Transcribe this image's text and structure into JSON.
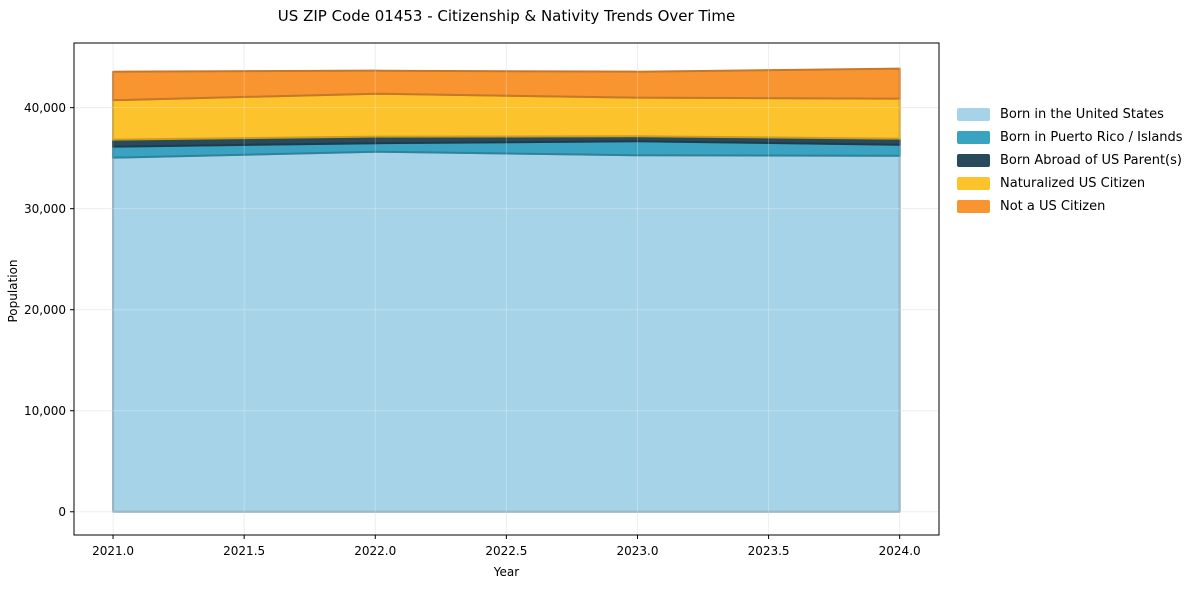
{
  "chart_data": {
    "type": "area",
    "stacked": true,
    "title": "US ZIP Code 01453 - Citizenship & Nativity Trends Over Time",
    "xlabel": "Year",
    "ylabel": "Population",
    "x": [
      2021,
      2022,
      2023,
      2024
    ],
    "series": [
      {
        "name": "Born in the United States",
        "color": "#a7d3e8",
        "values": [
          35050,
          35640,
          35290,
          35240
        ]
      },
      {
        "name": "Born in Puerto Rico / Islands",
        "color": "#39a3c1",
        "values": [
          1090,
          840,
          1390,
          1090
        ]
      },
      {
        "name": "Born Abroad of US Parent(s)",
        "color": "#274a5d",
        "values": [
          690,
          650,
          490,
          600
        ]
      },
      {
        "name": "Naturalized US Citizen",
        "color": "#fcc32d",
        "values": [
          3910,
          4250,
          3820,
          3960
        ]
      },
      {
        "name": "Not a US Citizen",
        "color": "#f89531",
        "values": [
          2820,
          2280,
          2570,
          2970
        ]
      }
    ],
    "totals": [
      43560,
      43660,
      43560,
      43860
    ],
    "x_ticks": [
      2021.0,
      2021.5,
      2022.0,
      2022.5,
      2023.0,
      2023.5,
      2024.0
    ],
    "x_tick_labels": [
      "2021.0",
      "2021.5",
      "2022.0",
      "2022.5",
      "2023.0",
      "2023.5",
      "2024.0"
    ],
    "y_ticks": [
      0,
      10000,
      20000,
      30000,
      40000
    ],
    "y_tick_labels": [
      "0",
      "10,000",
      "20,000",
      "30,000",
      "40,000"
    ],
    "xlim": [
      2020.851,
      2024.15
    ],
    "ylim": [
      -2300,
      46400
    ],
    "grid": true,
    "grid_color": "#e9e9e9",
    "axis_color": "#000000",
    "legend_position": "right"
  }
}
